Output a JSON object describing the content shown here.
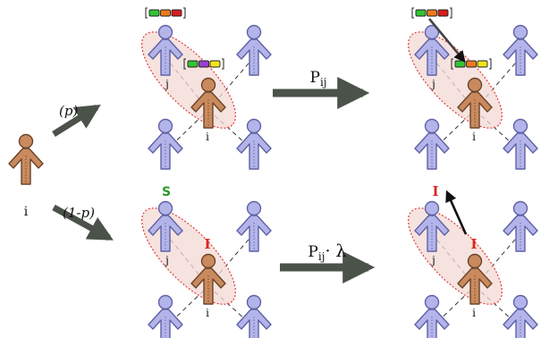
{
  "colors": {
    "focal_person": "#c98a5e",
    "focal_stroke": "#6b4428",
    "neighbor_person": "#b3b5ea",
    "neighbor_stroke": "#5f61a5",
    "arrow": "#4a5249",
    "ellipse_fill": "#f3d9d4",
    "ellipse_stroke": "#e03b3b",
    "state_s": "#2a9a2a",
    "state_i": "#d8281e",
    "opinion_colors": [
      "#33c433",
      "#f07a1e",
      "#d81e1e",
      "#9a3fd0",
      "#f2e41c"
    ]
  },
  "labels": {
    "source_node": "i",
    "branch_upper": "(p)",
    "branch_lower": "(1-p)",
    "rate_upper": "P",
    "rate_upper_sub": "ij",
    "rate_lower": "P",
    "rate_lower_sub": "ij",
    "rate_lower_mult": "· λ",
    "node_j": "j",
    "node_i": "i",
    "state_susceptible": "S",
    "state_infected": "I"
  }
}
